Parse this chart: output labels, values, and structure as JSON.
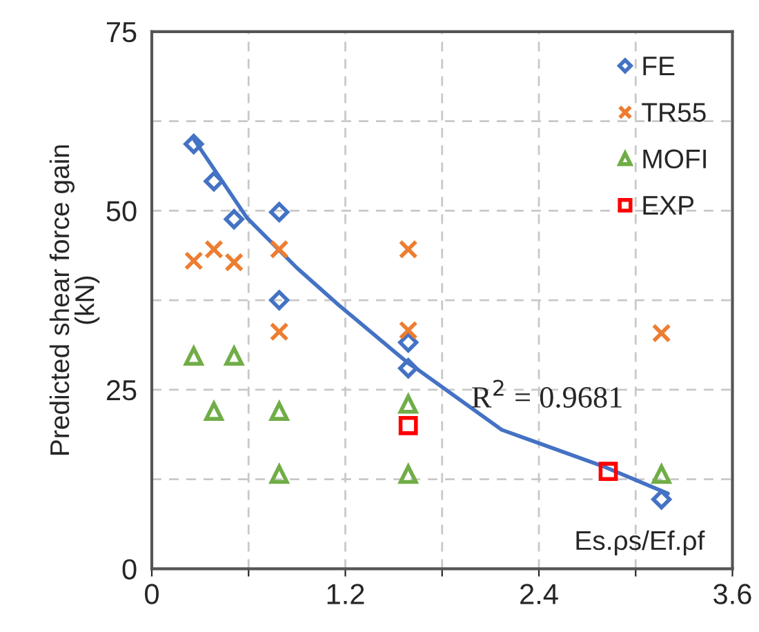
{
  "chart_data": {
    "type": "scatter",
    "xlabel": "Es.ρs/Ef.ρf",
    "ylabel": "Predicted shear force gain\n(kN)",
    "xlim": [
      0,
      3.6
    ],
    "ylim": [
      0,
      75
    ],
    "xticks": [
      0,
      {
        "value": 0.6,
        "label": null
      },
      1.2,
      {
        "value": 1.8,
        "label": null
      },
      2.4,
      {
        "value": 3.0,
        "label": null
      },
      3.6
    ],
    "yticks": [
      0,
      {
        "value": 12.5,
        "label": null
      },
      25,
      {
        "value": 37.5,
        "label": null
      },
      50,
      {
        "value": 62.5,
        "label": null
      },
      75
    ],
    "grid": true,
    "legend": "top right",
    "annotations": [
      "R$^{2}$ = 0.9681"
    ],
    "series": [
      {
        "name": "FE",
        "color": "#4472c4",
        "marker": "diamond",
        "x": [
          0.26,
          0.385,
          0.51,
          0.79,
          0.79,
          1.59,
          1.59,
          3.16
        ],
        "values": [
          59.3,
          54.1,
          48.8,
          49.8,
          37.5,
          31.6,
          28,
          9.7
        ]
      },
      {
        "name": "TR55",
        "color": "#ed7d31",
        "marker": "cross",
        "x": [
          0.26,
          0.385,
          0.51,
          0.79,
          0.79,
          1.59,
          1.59,
          3.16
        ],
        "values": [
          43,
          44.6,
          42.8,
          44.6,
          33.1,
          44.6,
          33.3,
          32.9
        ]
      },
      {
        "name": "MOFI",
        "color": "#70ad47",
        "marker": "triangle",
        "x": [
          0.26,
          0.385,
          0.51,
          0.79,
          0.79,
          1.59,
          1.59,
          3.16
        ],
        "values": [
          29.7,
          22,
          29.7,
          22,
          13.2,
          23,
          13.2,
          13.2
        ]
      },
      {
        "name": "EXP",
        "color": "#ff0000",
        "marker": "square",
        "x": [
          1.59,
          2.83
        ],
        "values": [
          20,
          13.6
        ]
      },
      {
        "type": "line",
        "color": "#4472c4",
        "x": [
          0.26,
          0.59,
          0.9,
          1.16,
          1.59,
          1.65,
          2.17,
          2.81,
          3.2
        ],
        "values": [
          60,
          49,
          42,
          36.8,
          28.7,
          27.8,
          19.4,
          14.2,
          10.5
        ]
      }
    ]
  }
}
